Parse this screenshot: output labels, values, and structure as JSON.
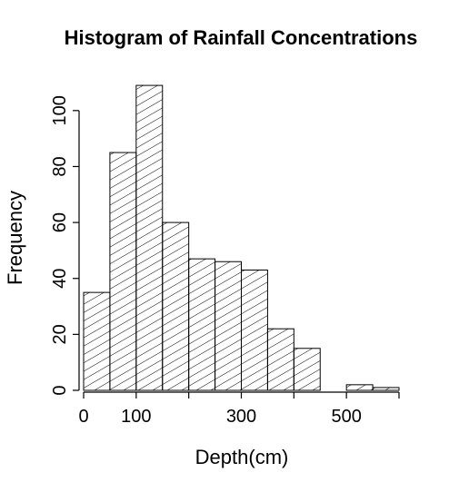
{
  "chart_data": {
    "type": "bar",
    "subtype": "histogram",
    "title": "Histogram of Rainfall Concentrations",
    "xlabel": "Depth(cm)",
    "ylabel": "Frequency",
    "bin_width": 50,
    "bins": [
      {
        "start": 0,
        "end": 50,
        "value": 35
      },
      {
        "start": 50,
        "end": 100,
        "value": 85
      },
      {
        "start": 100,
        "end": 150,
        "value": 109
      },
      {
        "start": 150,
        "end": 200,
        "value": 60
      },
      {
        "start": 200,
        "end": 250,
        "value": 47
      },
      {
        "start": 250,
        "end": 300,
        "value": 46
      },
      {
        "start": 300,
        "end": 350,
        "value": 43
      },
      {
        "start": 350,
        "end": 400,
        "value": 22
      },
      {
        "start": 400,
        "end": 450,
        "value": 15
      },
      {
        "start": 450,
        "end": 500,
        "value": 0
      },
      {
        "start": 500,
        "end": 550,
        "value": 2
      },
      {
        "start": 550,
        "end": 600,
        "value": 1
      }
    ],
    "xlim": [
      0,
      600
    ],
    "ylim": [
      0,
      110
    ],
    "x_ticks": [
      0,
      100,
      200,
      300,
      400,
      500,
      600
    ],
    "x_tick_labels": [
      "0",
      "100",
      "",
      "300",
      "",
      "500",
      ""
    ],
    "y_ticks": [
      0,
      20,
      40,
      60,
      80,
      100
    ],
    "y_tick_labels": [
      "0",
      "20",
      "40",
      "60",
      "80",
      "100"
    ],
    "fill": "diagonal-hatch",
    "colors": {
      "bar_stroke": "#000000",
      "background": "#ffffff"
    },
    "grid": false,
    "legend": "none"
  }
}
